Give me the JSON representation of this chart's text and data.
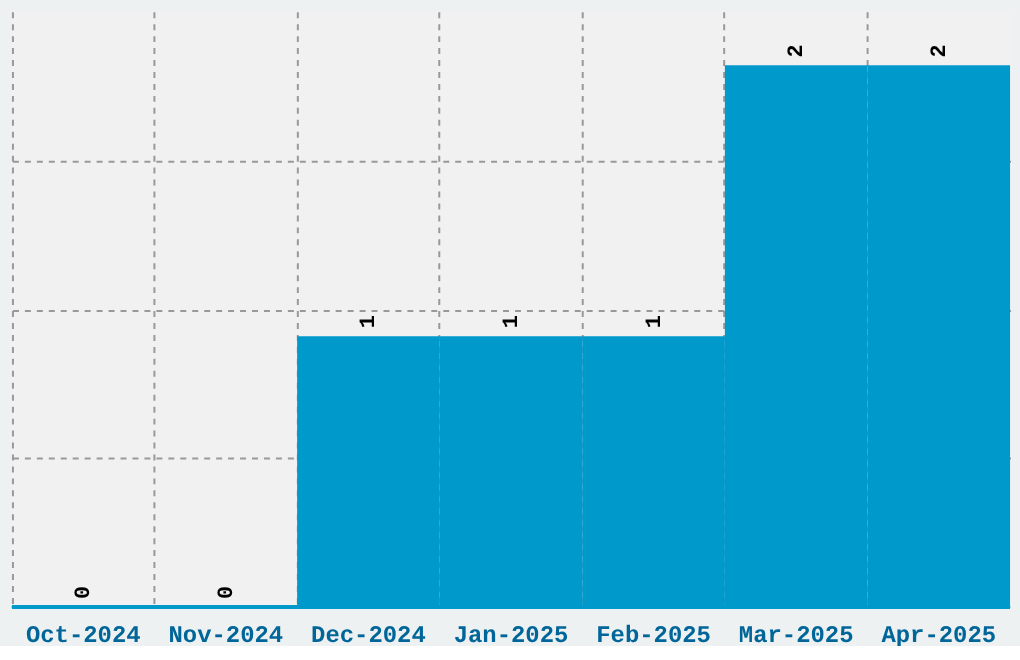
{
  "chart_data": {
    "type": "bar",
    "categories": [
      "Oct-2024",
      "Nov-2024",
      "Dec-2024",
      "Jan-2025",
      "Feb-2025",
      "Mar-2025",
      "Apr-2025"
    ],
    "values": [
      0,
      0,
      1,
      1,
      1,
      2,
      2
    ],
    "color": "#0099cc",
    "ylim": [
      0,
      2.2
    ],
    "yticks": [
      {
        "value": 0.55,
        "label": null
      },
      {
        "value": 1.1,
        "label": null
      },
      {
        "value": 1.65,
        "label": null
      }
    ],
    "tick_labels": "x",
    "grid": true,
    "data_labels": true
  }
}
